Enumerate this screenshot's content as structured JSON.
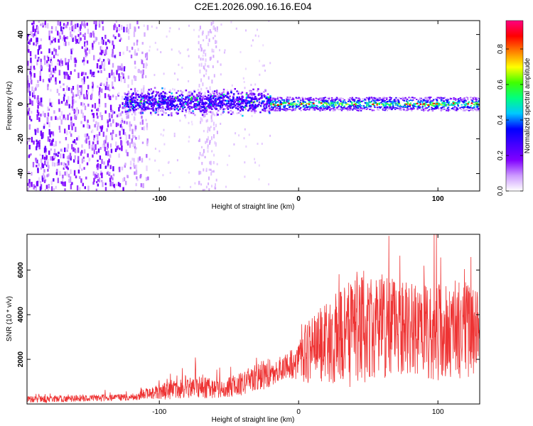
{
  "chart_data": [
    {
      "type": "heatmap",
      "title": "C2E1.2026.090.16.16.E04",
      "xlabel": "Height of straight line (km)",
      "ylabel": "Frequency (Hz)",
      "xlim": [
        -195,
        130
      ],
      "ylim": [
        -50,
        48
      ],
      "xticks": [
        -100,
        0,
        100
      ],
      "xtick_labels": [
        "-100",
        "0",
        "100"
      ],
      "yticks": [
        -40,
        -20,
        0,
        20,
        40
      ],
      "ytick_labels": [
        "-40",
        "-20",
        "0",
        "20",
        "40"
      ],
      "grid": false,
      "colorbar": {
        "label": "Normalized spectral amplitude",
        "range": [
          0,
          0.96
        ],
        "ticks": [
          0.0,
          0.2,
          0.4,
          0.6,
          0.8
        ],
        "tick_labels": [
          "0.0",
          "0.2",
          "0.4",
          "0.6",
          "0.8"
        ],
        "colormap": [
          "#ffffff",
          "#cc99ff",
          "#8000ff",
          "#4400ff",
          "#0000ff",
          "#00c8ff",
          "#00ff80",
          "#40ff00",
          "#ffff00",
          "#ff8000",
          "#ff0000",
          "#ff0080"
        ]
      },
      "regions": [
        {
          "name": "sparse noise",
          "x_range": [
            -195,
            -108
          ],
          "freq_range": [
            -50,
            48
          ],
          "amplitude": 0.15
        },
        {
          "name": "faint noise column",
          "x_range": [
            -72,
            -58
          ],
          "freq_range": [
            -50,
            48
          ],
          "amplitude": 0.05
        },
        {
          "name": "broadband core",
          "x_range": [
            -125,
            -20
          ],
          "freq_range": [
            -6,
            8
          ],
          "amplitude": 0.3
        },
        {
          "name": "narrow band",
          "x_range": [
            -20,
            130
          ],
          "freq_range": [
            -3,
            3
          ],
          "amplitude": 0.6
        }
      ]
    },
    {
      "type": "line",
      "xlabel": "Height of straight line (km)",
      "ylabel": "SNR (10 * v/v)",
      "xlim": [
        -195,
        130
      ],
      "ylim": [
        0,
        7600
      ],
      "xticks": [
        -100,
        0,
        100
      ],
      "xtick_labels": [
        "-100",
        "0",
        "100"
      ],
      "yticks": [
        2000,
        4000,
        6000
      ],
      "ytick_labels": [
        "2000",
        "4000",
        "6000"
      ],
      "color": "#ee3333",
      "series": [
        {
          "name": "SNR",
          "profile_x": [
            -195,
            -120,
            -110,
            -90,
            -70,
            -55,
            -40,
            -25,
            -12,
            0,
            5,
            20,
            40,
            55,
            80,
            100,
            115,
            130
          ],
          "profile_mean": [
            200,
            300,
            450,
            650,
            750,
            650,
            950,
            1300,
            1600,
            1900,
            2300,
            2800,
            3200,
            3600,
            3400,
            3200,
            3300,
            3400
          ],
          "profile_amplitude": [
            150,
            150,
            250,
            450,
            500,
            400,
            550,
            700,
            500,
            800,
            1400,
            1800,
            2500,
            2600,
            2000,
            2200,
            2300,
            2000
          ]
        }
      ]
    }
  ]
}
